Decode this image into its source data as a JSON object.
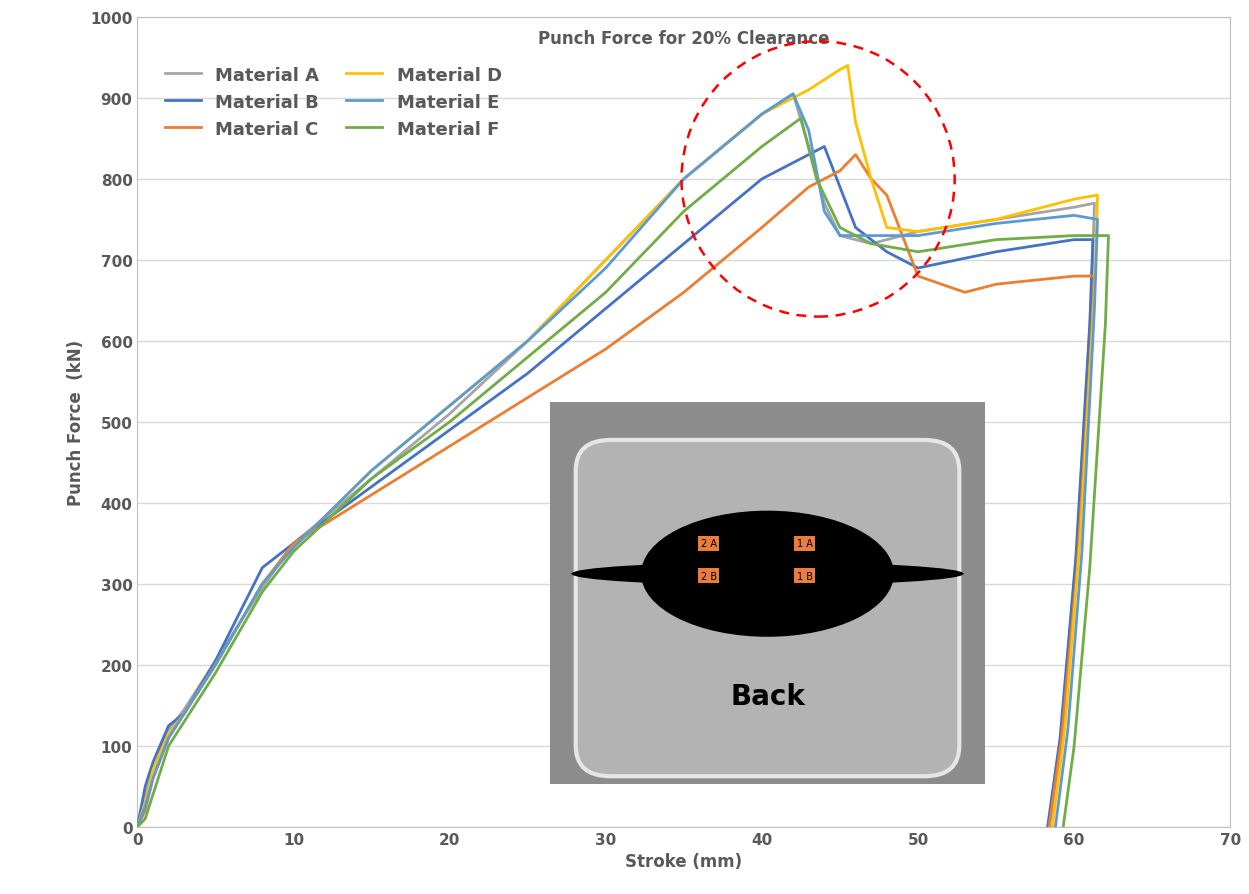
{
  "chart_data": {
    "type": "line",
    "title": "Punch Force for 20% Clearance",
    "x_label": "Stroke (mm)",
    "y_label": "Punch Force  (kN)",
    "xlim": [
      0,
      70
    ],
    "xticks": [
      0,
      10,
      20,
      30,
      40,
      50,
      60,
      70
    ],
    "ylim": [
      0,
      1000
    ],
    "yticks": [
      0,
      100,
      200,
      300,
      400,
      500,
      600,
      700,
      800,
      900,
      1000
    ],
    "grid": true,
    "legend": "upper left",
    "series": [
      {
        "name": "Material A",
        "color": "#a5a5a5",
        "x": [
          0,
          0.5,
          1,
          2,
          3,
          5,
          8,
          10,
          15,
          20,
          25,
          30,
          35,
          40,
          42,
          43,
          44,
          45,
          47,
          50,
          55,
          60,
          61.3,
          61.1,
          60.2,
          59.2,
          58.4
        ],
        "values": [
          0,
          40,
          70,
          120,
          145,
          205,
          295,
          350,
          430,
          510,
          600,
          700,
          800,
          880,
          905,
          840,
          770,
          730,
          720,
          735,
          750,
          765,
          770,
          650,
          350,
          120,
          0
        ]
      },
      {
        "name": "Material B",
        "color": "#4472c4",
        "x": [
          0,
          0.5,
          1,
          2,
          3,
          5,
          8,
          10,
          15,
          20,
          25,
          30,
          35,
          40,
          43,
          44,
          46,
          48,
          50,
          55,
          60,
          61.2,
          61.0,
          60.1,
          59.1,
          58.3
        ],
        "values": [
          0,
          50,
          80,
          125,
          140,
          205,
          320,
          350,
          420,
          490,
          560,
          640,
          720,
          800,
          830,
          840,
          740,
          710,
          690,
          710,
          725,
          725,
          620,
          330,
          110,
          0
        ]
      },
      {
        "name": "Material C",
        "color": "#ed7d31",
        "x": [
          0,
          0.5,
          1,
          2,
          3,
          5,
          8,
          10,
          15,
          20,
          25,
          30,
          35,
          40,
          43,
          45,
          46,
          47,
          48,
          50,
          53,
          55,
          60,
          61.3,
          61.1,
          60.2,
          59.2,
          58.4
        ],
        "values": [
          0,
          20,
          60,
          110,
          140,
          200,
          300,
          350,
          410,
          470,
          530,
          590,
          660,
          740,
          790,
          810,
          830,
          800,
          780,
          680,
          660,
          670,
          680,
          680,
          600,
          320,
          110,
          0
        ]
      },
      {
        "name": "Material D",
        "color": "#ffc000",
        "x": [
          0,
          0.5,
          1,
          2,
          3,
          5,
          8,
          10,
          15,
          20,
          25,
          30,
          35,
          40,
          43,
          45,
          45.5,
          46,
          47,
          48,
          50,
          55,
          60,
          61.5,
          61.3,
          60.4,
          59.4,
          58.6
        ],
        "values": [
          0,
          30,
          70,
          115,
          140,
          200,
          300,
          345,
          440,
          520,
          600,
          700,
          800,
          880,
          910,
          935,
          940,
          870,
          800,
          740,
          735,
          750,
          775,
          780,
          660,
          360,
          120,
          0
        ]
      },
      {
        "name": "Material E",
        "color": "#5b9bd5",
        "x": [
          0,
          0.5,
          1,
          2,
          3,
          5,
          8,
          10,
          15,
          20,
          25,
          30,
          35,
          40,
          42,
          43,
          44,
          45,
          47,
          50,
          55,
          60,
          61.5,
          61.3,
          60.5,
          59.6,
          58.8
        ],
        "values": [
          0,
          25,
          60,
          110,
          140,
          200,
          300,
          345,
          440,
          520,
          600,
          690,
          800,
          880,
          905,
          860,
          760,
          730,
          730,
          730,
          745,
          755,
          750,
          640,
          340,
          120,
          0
        ]
      },
      {
        "name": "Material F",
        "color": "#70ad47",
        "x": [
          0,
          0.5,
          1,
          2,
          3,
          5,
          8,
          10,
          15,
          20,
          25,
          30,
          35,
          40,
          42.5,
          43.5,
          45,
          47,
          50,
          55,
          60,
          62.2,
          62.0,
          61.0,
          60.0,
          59.3
        ],
        "values": [
          0,
          10,
          40,
          100,
          130,
          190,
          290,
          340,
          430,
          500,
          580,
          660,
          760,
          840,
          875,
          800,
          740,
          720,
          710,
          725,
          730,
          730,
          620,
          320,
          100,
          0
        ]
      }
    ],
    "inset": {
      "labels": [
        "2 A",
        "1 A",
        "2 B",
        "1 B"
      ],
      "caption": "Back"
    }
  }
}
